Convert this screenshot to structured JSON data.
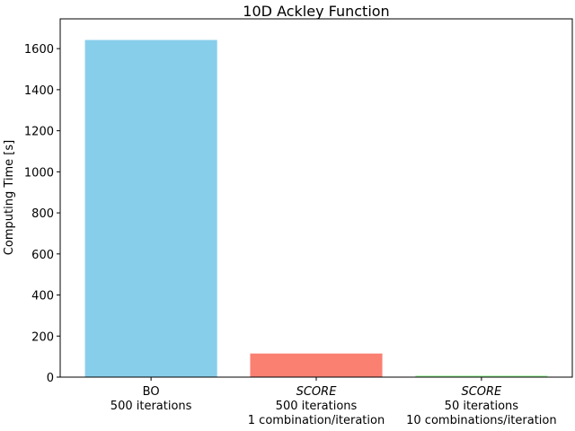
{
  "chart_data": {
    "type": "bar",
    "title": "10D Ackley Function",
    "y_label": "Computing Time [s]",
    "categories": [
      [
        "BO",
        "500 iterations"
      ],
      [
        "SCORE",
        "500 iterations",
        "1 combination/iteration"
      ],
      [
        "SCORE",
        "50 iterations",
        "10 combinations/iteration"
      ]
    ],
    "values": [
      1642,
      115,
      7
    ],
    "colors": [
      "#87ceeb",
      "#fa8072",
      "#90ee90"
    ],
    "ylim": [
      0,
      1745
    ],
    "yticks": [
      0,
      200,
      400,
      600,
      800,
      1000,
      1200,
      1400,
      1600
    ],
    "grid": false
  }
}
